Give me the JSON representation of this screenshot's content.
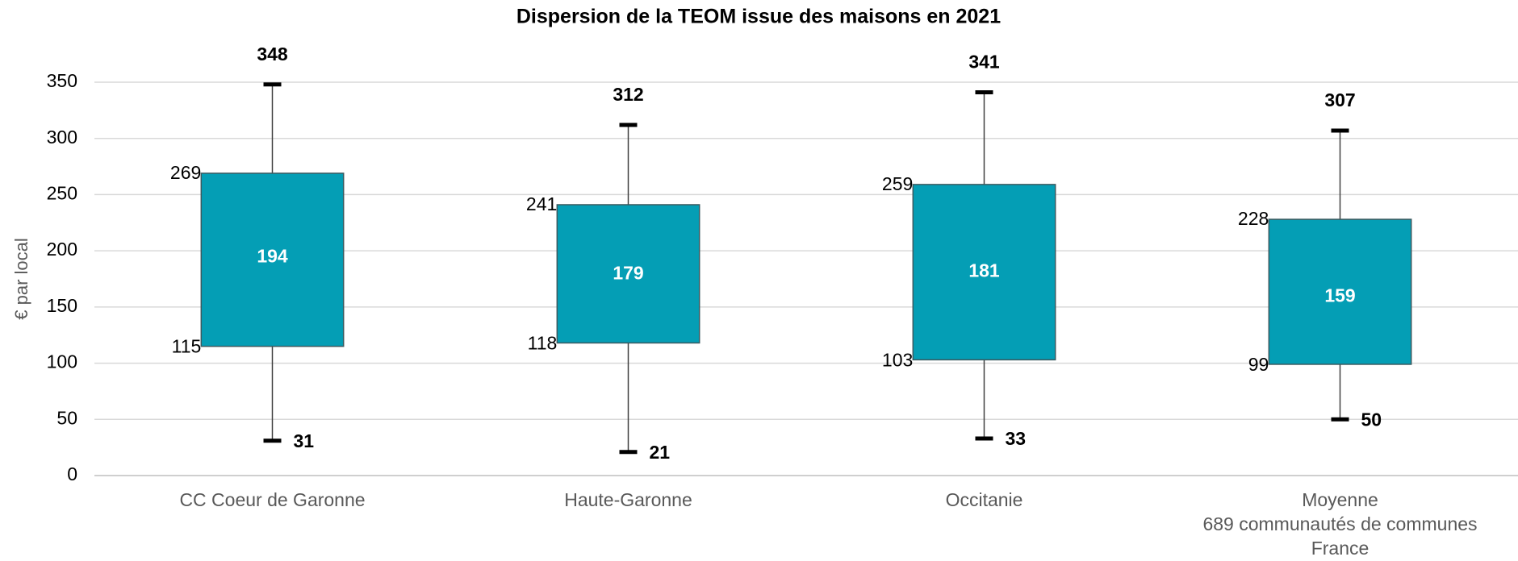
{
  "chart_data": {
    "type": "box",
    "title": "Dispersion de la TEOM issue des maisons en 2021",
    "y_label": "€ par local",
    "categories": [
      "CC Coeur de Garonne",
      "Haute-Garonne",
      "Occitanie",
      "Moyenne\n689 communautés de communes\nFrance"
    ],
    "min": [
      31,
      21,
      33,
      50
    ],
    "q1": [
      115,
      118,
      103,
      99
    ],
    "median": [
      194,
      179,
      181,
      159
    ],
    "q3": [
      269,
      241,
      259,
      228
    ],
    "max": [
      348,
      312,
      341,
      307
    ],
    "color": "#049eb5",
    "ylim": [
      0,
      350
    ],
    "yticks": [
      0,
      50,
      100,
      150,
      200,
      250,
      300,
      350
    ],
    "grid": true
  }
}
